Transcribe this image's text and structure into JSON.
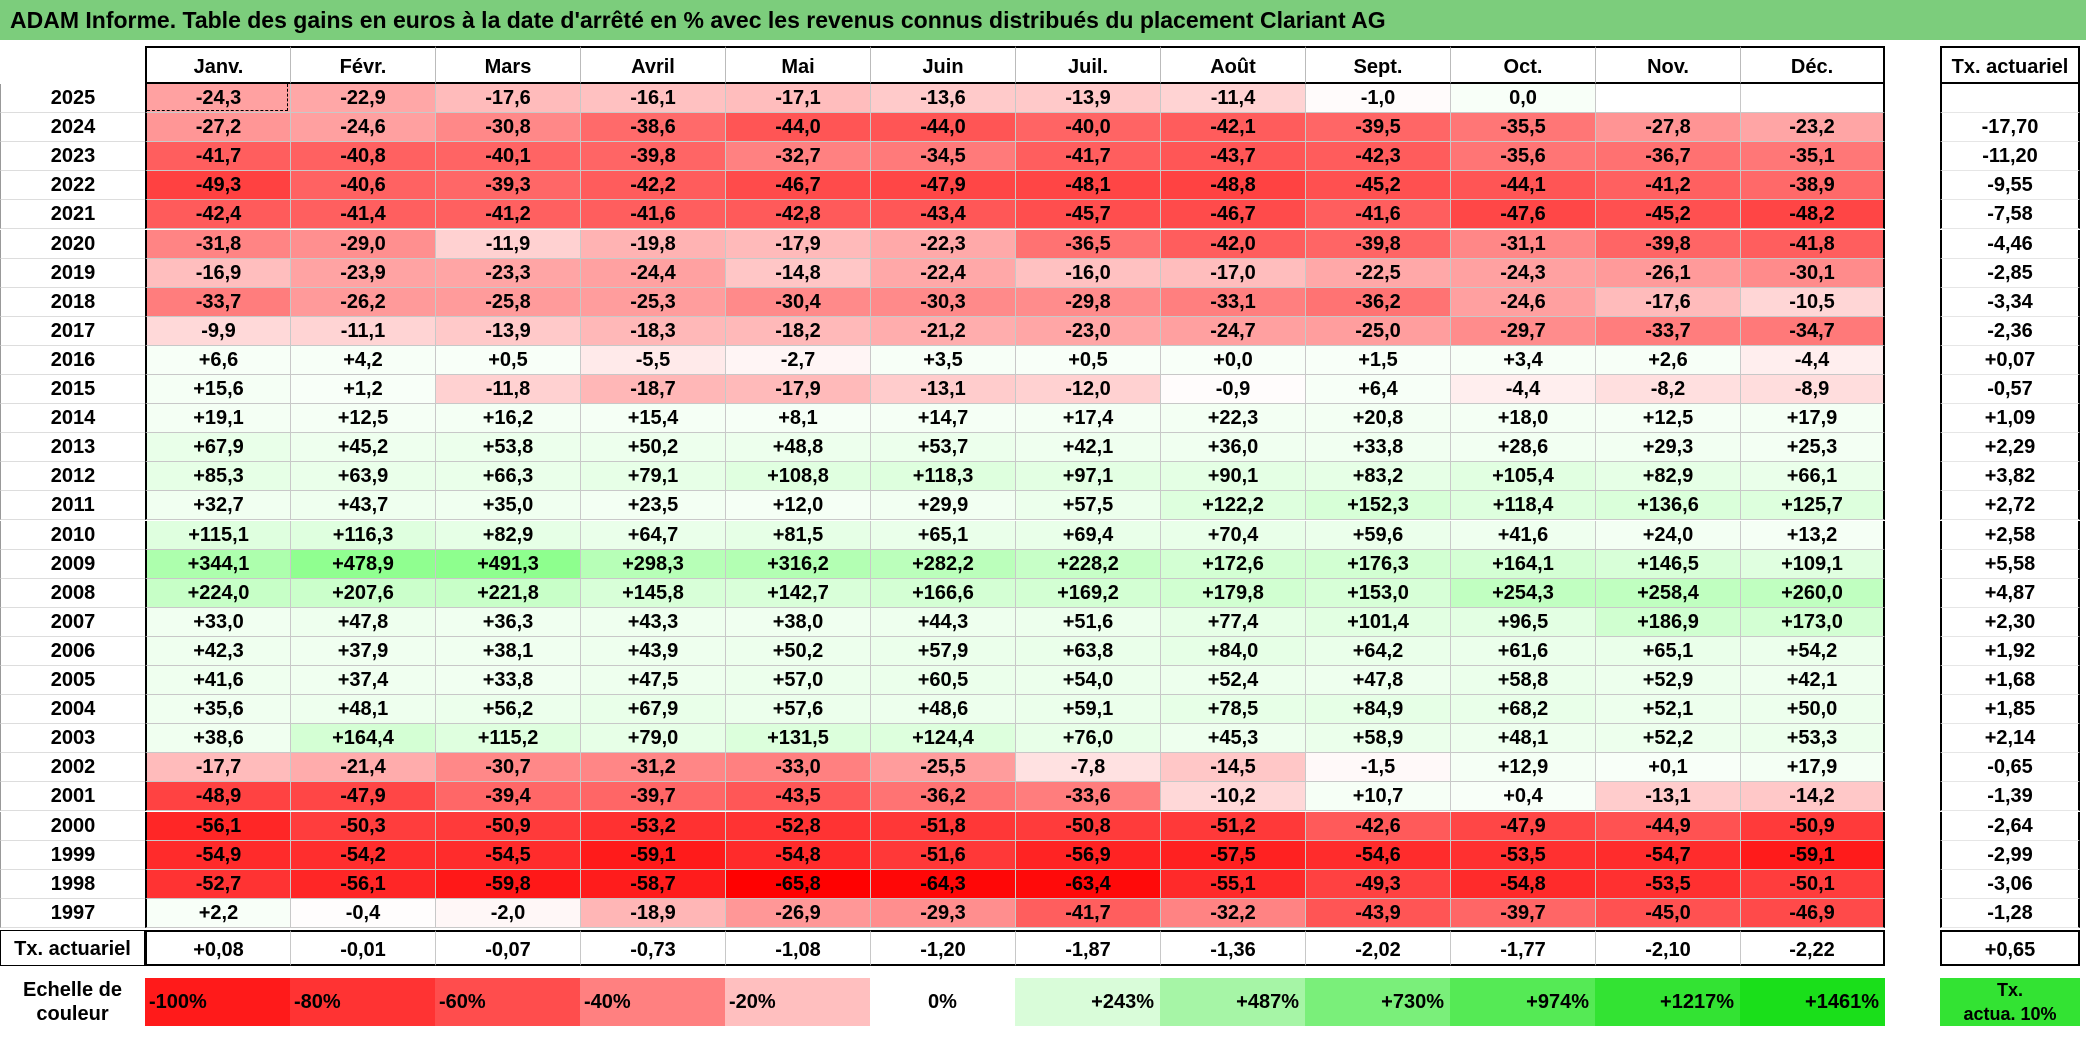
{
  "title": "ADAM Informe. Table des gains en euros à la date d'arrêté en % avec les revenus connus distribués du placement Clariant AG",
  "months": [
    "Janv.",
    "Févr.",
    "Mars",
    "Avril",
    "Mai",
    "Juin",
    "Juil.",
    "Août",
    "Sept.",
    "Oct.",
    "Nov.",
    "Déc."
  ],
  "tx_header": "Tx. actuariel",
  "rows": [
    {
      "year": "2025",
      "values": [
        "-24,3",
        "-22,9",
        "-17,6",
        "-16,1",
        "-17,1",
        "-13,6",
        "-13,9",
        "-11,4",
        "-1,0",
        "0,0",
        "",
        ""
      ],
      "tx": ""
    },
    {
      "year": "2024",
      "values": [
        "-27,2",
        "-24,6",
        "-30,8",
        "-38,6",
        "-44,0",
        "-44,0",
        "-40,0",
        "-42,1",
        "-39,5",
        "-35,5",
        "-27,8",
        "-23,2"
      ],
      "tx": "-17,70"
    },
    {
      "year": "2023",
      "values": [
        "-41,7",
        "-40,8",
        "-40,1",
        "-39,8",
        "-32,7",
        "-34,5",
        "-41,7",
        "-43,7",
        "-42,3",
        "-35,6",
        "-36,7",
        "-35,1"
      ],
      "tx": "-11,20"
    },
    {
      "year": "2022",
      "values": [
        "-49,3",
        "-40,6",
        "-39,3",
        "-42,2",
        "-46,7",
        "-47,9",
        "-48,1",
        "-48,8",
        "-45,2",
        "-44,1",
        "-41,2",
        "-38,9"
      ],
      "tx": "-9,55"
    },
    {
      "year": "2021",
      "values": [
        "-42,4",
        "-41,4",
        "-41,2",
        "-41,6",
        "-42,8",
        "-43,4",
        "-45,7",
        "-46,7",
        "-41,6",
        "-47,6",
        "-45,2",
        "-48,2"
      ],
      "tx": "-7,58"
    },
    {
      "year": "2020",
      "values": [
        "-31,8",
        "-29,0",
        "-11,9",
        "-19,8",
        "-17,9",
        "-22,3",
        "-36,5",
        "-42,0",
        "-39,8",
        "-31,1",
        "-39,8",
        "-41,8"
      ],
      "tx": "-4,46"
    },
    {
      "year": "2019",
      "values": [
        "-16,9",
        "-23,9",
        "-23,3",
        "-24,4",
        "-14,8",
        "-22,4",
        "-16,0",
        "-17,0",
        "-22,5",
        "-24,3",
        "-26,1",
        "-30,1"
      ],
      "tx": "-2,85"
    },
    {
      "year": "2018",
      "values": [
        "-33,7",
        "-26,2",
        "-25,8",
        "-25,3",
        "-30,4",
        "-30,3",
        "-29,8",
        "-33,1",
        "-36,2",
        "-24,6",
        "-17,6",
        "-10,5"
      ],
      "tx": "-3,34"
    },
    {
      "year": "2017",
      "values": [
        "-9,9",
        "-11,1",
        "-13,9",
        "-18,3",
        "-18,2",
        "-21,2",
        "-23,0",
        "-24,7",
        "-25,0",
        "-29,7",
        "-33,7",
        "-34,7"
      ],
      "tx": "-2,36"
    },
    {
      "year": "2016",
      "values": [
        "+6,6",
        "+4,2",
        "+0,5",
        "-5,5",
        "-2,7",
        "+3,5",
        "+0,5",
        "+0,0",
        "+1,5",
        "+3,4",
        "+2,6",
        "-4,4"
      ],
      "tx": "+0,07"
    },
    {
      "year": "2015",
      "values": [
        "+15,6",
        "+1,2",
        "-11,8",
        "-18,7",
        "-17,9",
        "-13,1",
        "-12,0",
        "-0,9",
        "+6,4",
        "-4,4",
        "-8,2",
        "-8,9"
      ],
      "tx": "-0,57"
    },
    {
      "year": "2014",
      "values": [
        "+19,1",
        "+12,5",
        "+16,2",
        "+15,4",
        "+8,1",
        "+14,7",
        "+17,4",
        "+22,3",
        "+20,8",
        "+18,0",
        "+12,5",
        "+17,9"
      ],
      "tx": "+1,09"
    },
    {
      "year": "2013",
      "values": [
        "+67,9",
        "+45,2",
        "+53,8",
        "+50,2",
        "+48,8",
        "+53,7",
        "+42,1",
        "+36,0",
        "+33,8",
        "+28,6",
        "+29,3",
        "+25,3"
      ],
      "tx": "+2,29"
    },
    {
      "year": "2012",
      "values": [
        "+85,3",
        "+63,9",
        "+66,3",
        "+79,1",
        "+108,8",
        "+118,3",
        "+97,1",
        "+90,1",
        "+83,2",
        "+105,4",
        "+82,9",
        "+66,1"
      ],
      "tx": "+3,82"
    },
    {
      "year": "2011",
      "values": [
        "+32,7",
        "+43,7",
        "+35,0",
        "+23,5",
        "+12,0",
        "+29,9",
        "+57,5",
        "+122,2",
        "+152,3",
        "+118,4",
        "+136,6",
        "+125,7"
      ],
      "tx": "+2,72"
    },
    {
      "year": "2010",
      "values": [
        "+115,1",
        "+116,3",
        "+82,9",
        "+64,7",
        "+81,5",
        "+65,1",
        "+69,4",
        "+70,4",
        "+59,6",
        "+41,6",
        "+24,0",
        "+13,2"
      ],
      "tx": "+2,58"
    },
    {
      "year": "2009",
      "values": [
        "+344,1",
        "+478,9",
        "+491,3",
        "+298,3",
        "+316,2",
        "+282,2",
        "+228,2",
        "+172,6",
        "+176,3",
        "+164,1",
        "+146,5",
        "+109,1"
      ],
      "tx": "+5,58"
    },
    {
      "year": "2008",
      "values": [
        "+224,0",
        "+207,6",
        "+221,8",
        "+145,8",
        "+142,7",
        "+166,6",
        "+169,2",
        "+179,8",
        "+153,0",
        "+254,3",
        "+258,4",
        "+260,0"
      ],
      "tx": "+4,87"
    },
    {
      "year": "2007",
      "values": [
        "+33,0",
        "+47,8",
        "+36,3",
        "+43,3",
        "+38,0",
        "+44,3",
        "+51,6",
        "+77,4",
        "+101,4",
        "+96,5",
        "+186,9",
        "+173,0"
      ],
      "tx": "+2,30"
    },
    {
      "year": "2006",
      "values": [
        "+42,3",
        "+37,9",
        "+38,1",
        "+43,9",
        "+50,2",
        "+57,9",
        "+63,8",
        "+84,0",
        "+64,2",
        "+61,6",
        "+65,1",
        "+54,2"
      ],
      "tx": "+1,92"
    },
    {
      "year": "2005",
      "values": [
        "+41,6",
        "+37,4",
        "+33,8",
        "+47,5",
        "+57,0",
        "+60,5",
        "+54,0",
        "+52,4",
        "+47,8",
        "+58,8",
        "+52,9",
        "+42,1"
      ],
      "tx": "+1,68"
    },
    {
      "year": "2004",
      "values": [
        "+35,6",
        "+48,1",
        "+56,2",
        "+67,9",
        "+57,6",
        "+48,6",
        "+59,1",
        "+78,5",
        "+84,9",
        "+68,2",
        "+52,1",
        "+50,0"
      ],
      "tx": "+1,85"
    },
    {
      "year": "2003",
      "values": [
        "+38,6",
        "+164,4",
        "+115,2",
        "+79,0",
        "+131,5",
        "+124,4",
        "+76,0",
        "+45,3",
        "+58,9",
        "+48,1",
        "+52,2",
        "+53,3"
      ],
      "tx": "+2,14"
    },
    {
      "year": "2002",
      "values": [
        "-17,7",
        "-21,4",
        "-30,7",
        "-31,2",
        "-33,0",
        "-25,5",
        "-7,8",
        "-14,5",
        "-1,5",
        "+12,9",
        "+0,1",
        "+17,9"
      ],
      "tx": "-0,65"
    },
    {
      "year": "2001",
      "values": [
        "-48,9",
        "-47,9",
        "-39,4",
        "-39,7",
        "-43,5",
        "-36,2",
        "-33,6",
        "-10,2",
        "+10,7",
        "+0,4",
        "-13,1",
        "-14,2"
      ],
      "tx": "-1,39"
    },
    {
      "year": "2000",
      "values": [
        "-56,1",
        "-50,3",
        "-50,9",
        "-53,2",
        "-52,8",
        "-51,8",
        "-50,8",
        "-51,2",
        "-42,6",
        "-47,9",
        "-44,9",
        "-50,9"
      ],
      "tx": "-2,64"
    },
    {
      "year": "1999",
      "values": [
        "-54,9",
        "-54,2",
        "-54,5",
        "-59,1",
        "-54,8",
        "-51,6",
        "-56,9",
        "-57,5",
        "-54,6",
        "-53,5",
        "-54,7",
        "-59,1"
      ],
      "tx": "-2,99"
    },
    {
      "year": "1998",
      "values": [
        "-52,7",
        "-56,1",
        "-59,8",
        "-58,7",
        "-65,8",
        "-64,3",
        "-63,4",
        "-55,1",
        "-49,3",
        "-54,8",
        "-53,5",
        "-50,1"
      ],
      "tx": "-3,06"
    },
    {
      "year": "1997",
      "values": [
        "+2,2",
        "-0,4",
        "-2,0",
        "-18,9",
        "-26,9",
        "-29,3",
        "-41,7",
        "-32,2",
        "-43,9",
        "-39,7",
        "-45,0",
        "-46,9"
      ],
      "tx": "-1,28"
    }
  ],
  "footer": {
    "label": "Tx. actuariel",
    "values": [
      "+0,08",
      "-0,01",
      "-0,07",
      "-0,73",
      "-1,08",
      "-1,20",
      "-1,87",
      "-1,36",
      "-2,02",
      "-1,77",
      "-2,10",
      "-2,22"
    ],
    "tx": "+0,65"
  },
  "scale": {
    "label_line1": "Echelle de",
    "label_line2": "couleur",
    "items": [
      {
        "text": "-100%",
        "color": "#ff1a1a",
        "align": "left"
      },
      {
        "text": "-80%",
        "color": "#ff3333",
        "align": "left"
      },
      {
        "text": "-60%",
        "color": "#ff4d4d",
        "align": "left"
      },
      {
        "text": "-40%",
        "color": "#ff8080",
        "align": "left"
      },
      {
        "text": "-20%",
        "color": "#ffbfbf",
        "align": "left"
      },
      {
        "text": "0%",
        "color": "#ffffff",
        "align": "center"
      },
      {
        "text": "+243%",
        "color": "#d9fcd9",
        "align": "right"
      },
      {
        "text": "+487%",
        "color": "#a6f5a6",
        "align": "right"
      },
      {
        "text": "+730%",
        "color": "#7aef7a",
        "align": "right"
      },
      {
        "text": "+974%",
        "color": "#55ea55",
        "align": "right"
      },
      {
        "text": "+1217%",
        "color": "#33e333",
        "align": "right"
      },
      {
        "text": "+1461%",
        "color": "#1adf1a",
        "align": "right"
      }
    ],
    "tx_line1": "Tx.",
    "tx_line2": "actua. 10%",
    "tx_color": "#33e333"
  }
}
